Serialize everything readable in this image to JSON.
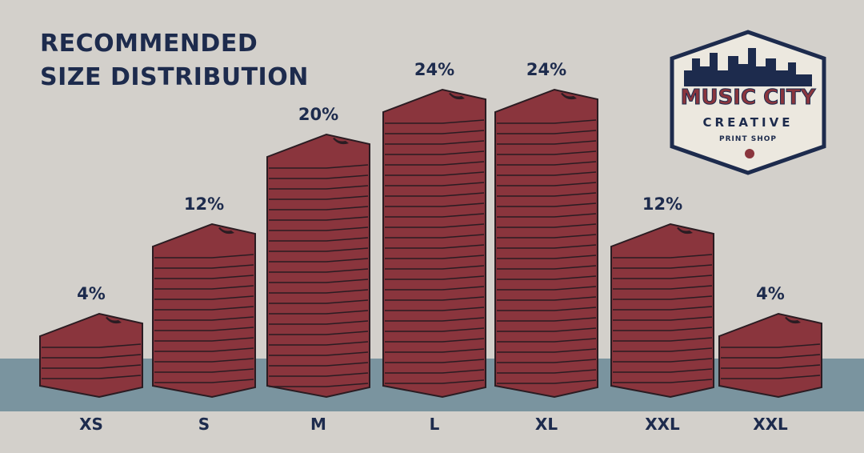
{
  "chart_data": {
    "type": "bar",
    "title": "RECOMMENDED\nSIZE DISTRIBUTION",
    "categories": [
      "XS",
      "S",
      "M",
      "L",
      "XL",
      "XXL",
      "XXL"
    ],
    "values": [
      4,
      12,
      20,
      24,
      24,
      12,
      4
    ],
    "value_labels": [
      "4%",
      "12%",
      "20%",
      "24%",
      "24%",
      "12%",
      "4%"
    ],
    "color": "#8a353d"
  },
  "logo": {
    "name": "MUSIC CITY",
    "subtitle": "CREATIVE",
    "tagline": "PRINT SHOP"
  }
}
